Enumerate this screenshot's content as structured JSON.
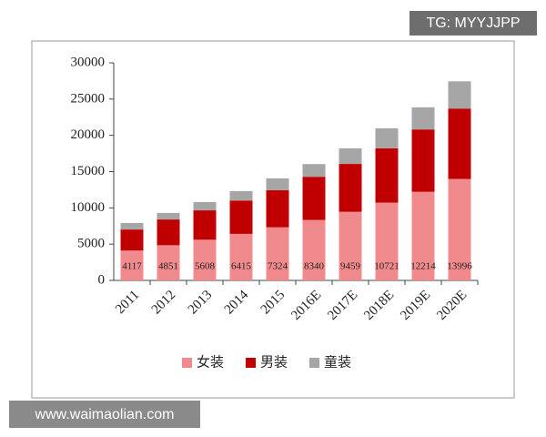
{
  "chart_data": {
    "type": "stacked_bar",
    "categories": [
      "2011",
      "2012",
      "2013",
      "2014",
      "2015",
      "2016E",
      "2017E",
      "2018E",
      "2019E",
      "2020E"
    ],
    "series": [
      {
        "name": "女装",
        "color": "#f08a8c",
        "show_labels": true,
        "values": [
          4117,
          4851,
          5608,
          6415,
          7324,
          8340,
          9459,
          10721,
          12214,
          13996
        ]
      },
      {
        "name": "男装",
        "color": "#c00000",
        "values": [
          2900,
          3550,
          4050,
          4600,
          5100,
          5950,
          6600,
          7500,
          8600,
          9700
        ]
      },
      {
        "name": "童装",
        "color": "#a6a6a6",
        "values": [
          900,
          900,
          1150,
          1300,
          1650,
          1750,
          2150,
          2750,
          3050,
          3750
        ]
      }
    ],
    "ylim": [
      0,
      30000
    ],
    "yticks": [
      0,
      5000,
      10000,
      15000,
      20000,
      25000,
      30000
    ],
    "legend": "bottom"
  },
  "watermarks": [
    "TG: MYYJJPP",
    "www.waimaolian.com"
  ]
}
